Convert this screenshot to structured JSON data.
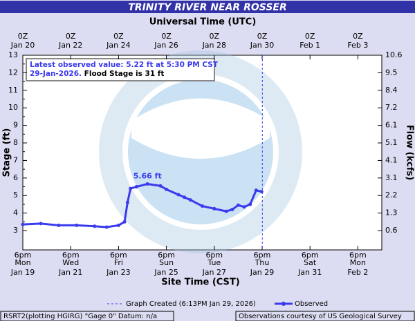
{
  "chart_data": {
    "type": "line",
    "title": "TRINITY RIVER NEAR ROSSER",
    "top_axis_label": "Universal Time (UTC)",
    "xlabel": "Site Time (CST)",
    "ylabel": "Stage (ft)",
    "y2label": "Flow (kcfs)",
    "info_line1": "Latest observed value: 5.22 ft at 5:30 PM CST",
    "info_line2a": "29-Jan-2026.",
    "info_line2b": "Flood Stage is 31 ft",
    "peak_label": "5.66 ft",
    "x": [
      "Jan 19 18:00",
      "Jan 20 12:00",
      "Jan 21 06:00",
      "Jan 22 00:00",
      "Jan 22 18:00",
      "Jan 23 06:00",
      "Jan 23 18:00",
      "Jan 24 00:00",
      "Jan 24 03:00",
      "Jan 24 06:00",
      "Jan 24 12:00",
      "Jan 24 23:00",
      "Jan 25 12:00",
      "Jan 25 18:00",
      "Jan 26 06:00",
      "Jan 26 12:00",
      "Jan 26 18:00",
      "Jan 27 06:00",
      "Jan 27 18:00",
      "Jan 28 06:00",
      "Jan 28 12:00",
      "Jan 28 18:00",
      "Jan 29 00:00",
      "Jan 29 06:00",
      "Jan 29 12:00",
      "Jan 29 17:30"
    ],
    "series": [
      {
        "name": "Observed",
        "color": "#3a3aee",
        "values": [
          3.35,
          3.4,
          3.3,
          3.3,
          3.25,
          3.2,
          3.3,
          3.5,
          4.6,
          5.4,
          5.5,
          5.66,
          5.55,
          5.35,
          5.05,
          4.9,
          4.75,
          4.4,
          4.25,
          4.1,
          4.2,
          4.45,
          4.35,
          4.5,
          5.3,
          5.22
        ]
      }
    ],
    "created_name": "Graph Created (6:13PM Jan 29, 2026)",
    "created_x": "Jan 29 18:13",
    "xlim": [
      "Jan 19 18:00",
      "Feb 3 18:00"
    ],
    "xticks": [
      {
        "value": "Jan 19 18:00",
        "time": "6pm",
        "day": "Mon",
        "date": "Jan 19"
      },
      {
        "value": "Jan 21 18:00",
        "time": "6pm",
        "day": "Wed",
        "date": "Jan 21"
      },
      {
        "value": "Jan 23 18:00",
        "time": "6pm",
        "day": "Fri",
        "date": "Jan 23"
      },
      {
        "value": "Jan 25 18:00",
        "time": "6pm",
        "day": "Sun",
        "date": "Jan 25"
      },
      {
        "value": "Jan 27 18:00",
        "time": "6pm",
        "day": "Tue",
        "date": "Jan 27"
      },
      {
        "value": "Jan 29 18:00",
        "time": "6pm",
        "day": "Thu",
        "date": "Jan 29"
      },
      {
        "value": "Jan 31 18:00",
        "time": "6pm",
        "day": "Sat",
        "date": "Jan 31"
      },
      {
        "value": "Feb 2 18:00",
        "time": "6pm",
        "day": "Mon",
        "date": "Feb 2"
      }
    ],
    "x2ticks": [
      {
        "value": "Jan 19 18:00",
        "label": "0Z",
        "date": "Jan 20"
      },
      {
        "value": "Jan 21 18:00",
        "label": "0Z",
        "date": "Jan 22"
      },
      {
        "value": "Jan 23 18:00",
        "label": "0Z",
        "date": "Jan 24"
      },
      {
        "value": "Jan 25 18:00",
        "label": "0Z",
        "date": "Jan 26"
      },
      {
        "value": "Jan 27 18:00",
        "label": "0Z",
        "date": "Jan 28"
      },
      {
        "value": "Jan 29 18:00",
        "label": "0Z",
        "date": "Jan 30"
      },
      {
        "value": "Jan 31 18:00",
        "label": "0Z",
        "date": "Feb  1"
      },
      {
        "value": "Feb 2 18:00",
        "label": "0Z",
        "date": "Feb  3"
      }
    ],
    "ylim": [
      1.9,
      13
    ],
    "yticks": [
      3,
      4,
      5,
      6,
      7,
      8,
      9,
      10,
      11,
      12,
      13
    ],
    "y2ticks": [
      0.6,
      1.3,
      2.2,
      3.1,
      4.1,
      5.1,
      6.1,
      7.2,
      8.4,
      9.5,
      10.6
    ],
    "footer_left": "RSRT2(plotting HGIRG) \"Gage 0\" Datum: n/a",
    "footer_right": "Observations courtesy of US Geological Survey"
  }
}
